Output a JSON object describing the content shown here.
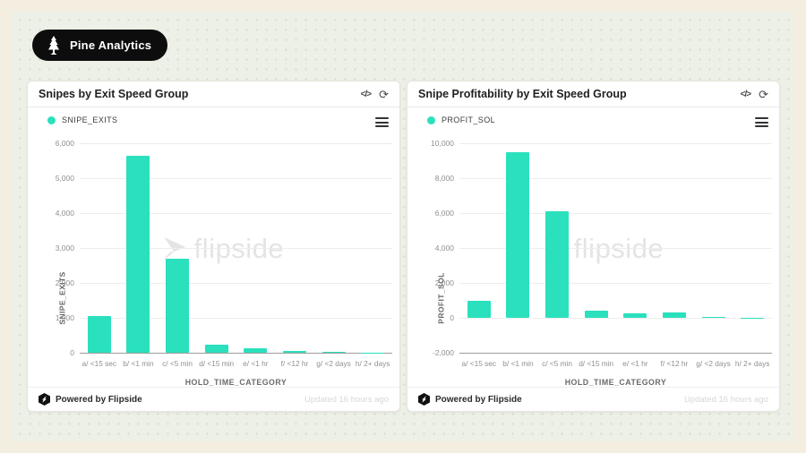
{
  "badge": {
    "label": "Pine Analytics",
    "icon": "pine-tree-icon"
  },
  "theme": {
    "accent": "#2be0bd",
    "badge_bg": "#0d0d0d",
    "card_bg": "#ffffff",
    "outer_bg": "#f4eee1",
    "pattern_bg": "#edf0e7",
    "grid_color": "#ededed",
    "axis_color": "#9b9b9b",
    "tick_color": "#8f8f8f",
    "watermark_color": "#e4e4e4"
  },
  "icons": {
    "code": "</>",
    "refresh": "⟳",
    "menu": "hamburger-menu"
  },
  "panel_footer": {
    "powered_by": "Powered by Flipside",
    "updated": "Updated 16 hours ago"
  },
  "watermark": {
    "text": "flipside"
  },
  "panels": [
    {
      "title": "Snipes by Exit Speed Group"
    },
    {
      "title": "Snipe Profitability by Exit Speed Group"
    }
  ],
  "chart_data": [
    {
      "type": "bar",
      "title": "Snipes by Exit Speed Group",
      "series_name": "SNIPE_EXITS",
      "categories": [
        "a/ <15 sec",
        "b/ <1 min",
        "c/ <5 min",
        "d/ <15 min",
        "e/ <1 hr",
        "f/ <12 hr",
        "g/ <2 days",
        "h/ 2+ days"
      ],
      "values": [
        1050,
        5650,
        2700,
        230,
        130,
        60,
        30,
        10
      ],
      "xlabel": "HOLD_TIME_CATEGORY",
      "ylabel": "SNIPE_EXITS",
      "ylim": [
        0,
        6000
      ],
      "ytick_step": 1000,
      "grid": true,
      "legend_position": "top-left",
      "bar_color": "#2be0bd"
    },
    {
      "type": "bar",
      "title": "Snipe Profitability by Exit Speed Group",
      "series_name": "PROFIT_SOL",
      "categories": [
        "a/ <15 sec",
        "b/ <1 min",
        "c/ <5 min",
        "d/ <15 min",
        "e/ <1 hr",
        "f/ <12 hr",
        "g/ <2 days",
        "h/ 2+ days"
      ],
      "values": [
        1000,
        9500,
        6100,
        400,
        250,
        300,
        40,
        15
      ],
      "xlabel": "HOLD_TIME_CATEGORY",
      "ylabel": "PROFIT_SOL",
      "ylim": [
        -2000,
        10000
      ],
      "ytick_step": 2000,
      "grid": true,
      "legend_position": "top-left",
      "bar_color": "#2be0bd"
    }
  ]
}
